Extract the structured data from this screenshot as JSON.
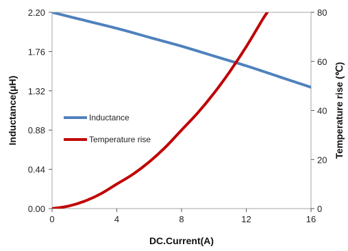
{
  "chart_data": {
    "type": "line",
    "xlabel": "DC.Current(A)",
    "ylabel_left": "Inductance(μH)",
    "ylabel_right": "Temperature rise (℃)",
    "xlim": [
      0,
      16
    ],
    "x_ticks": [
      "0",
      "4",
      "8",
      "12",
      "16"
    ],
    "y_left_lim": [
      0,
      2.2
    ],
    "y_left_ticks": [
      "0.00",
      "0.44",
      "0.88",
      "1.32",
      "1.76",
      "2.20"
    ],
    "y_right_lim": [
      0,
      80
    ],
    "y_right_ticks": [
      "0",
      "20",
      "40",
      "60",
      "80"
    ],
    "grid": false,
    "legend_position": "center-left",
    "series": [
      {
        "name": "Inductance",
        "axis": "left",
        "color": "#4F81BD",
        "x": [
          0,
          2,
          4,
          6,
          8,
          10,
          12,
          14,
          16
        ],
        "y": [
          2.2,
          2.11,
          2.02,
          1.92,
          1.82,
          1.71,
          1.6,
          1.48,
          1.36
        ]
      },
      {
        "name": "Temperature rise",
        "axis": "right",
        "color": "#C00000",
        "x": [
          0,
          1,
          2,
          3,
          4,
          5,
          6,
          7,
          8,
          9,
          10,
          11,
          12,
          13,
          13.3
        ],
        "y": [
          0,
          1,
          3,
          6,
          10,
          14,
          19,
          25,
          32,
          39,
          47,
          56,
          66,
          77,
          80
        ]
      }
    ]
  }
}
